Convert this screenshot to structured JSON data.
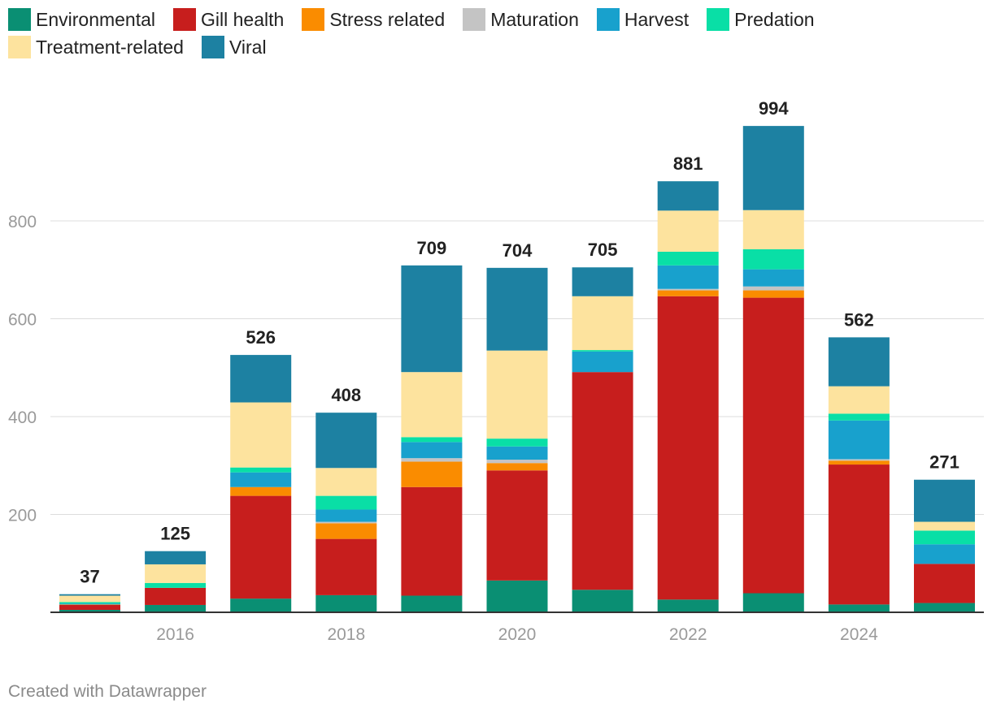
{
  "chart_data": {
    "type": "bar",
    "stacked": true,
    "title": "",
    "xlabel": "",
    "ylabel": "",
    "ylim": [
      0,
      1000
    ],
    "yticks": [
      200,
      400,
      600,
      800
    ],
    "categories": [
      "2015",
      "2016",
      "2017",
      "2018",
      "2019",
      "2020",
      "2021",
      "2022",
      "2023",
      "2024",
      "2025"
    ],
    "xtick_labels": [
      "",
      "2016",
      "",
      "2018",
      "",
      "2020",
      "",
      "2022",
      "",
      "2024",
      ""
    ],
    "totals": [
      37,
      125,
      526,
      408,
      709,
      704,
      705,
      881,
      994,
      562,
      271
    ],
    "total_labels": [
      "37",
      "125",
      "526",
      "408",
      "709",
      "704",
      "705",
      "881",
      "994",
      "562",
      "271"
    ],
    "series": [
      {
        "name": "Environmental",
        "color": "#0a8f73",
        "values": [
          5,
          15,
          28,
          35,
          34,
          65,
          46,
          26,
          39,
          16,
          19
        ]
      },
      {
        "name": "Gill health",
        "color": "#c71e1d",
        "values": [
          10,
          35,
          210,
          115,
          222,
          225,
          445,
          620,
          604,
          286,
          80
        ]
      },
      {
        "name": "Stress related",
        "color": "#fa8c00",
        "values": [
          1,
          0,
          18,
          32,
          52,
          15,
          0,
          12,
          15,
          8,
          0
        ]
      },
      {
        "name": "Maturation",
        "color": "#c4c4c4",
        "values": [
          0,
          0,
          0,
          3,
          7,
          7,
          0,
          3,
          8,
          3,
          0
        ]
      },
      {
        "name": "Harvest",
        "color": "#18a1cd",
        "values": [
          2,
          0,
          30,
          25,
          33,
          27,
          42,
          48,
          35,
          79,
          40
        ]
      },
      {
        "name": "Predation",
        "color": "#09dfa6",
        "values": [
          3,
          10,
          10,
          28,
          10,
          16,
          3,
          28,
          41,
          14,
          28
        ]
      },
      {
        "name": "Treatment-related",
        "color": "#fde39e",
        "values": [
          13,
          38,
          133,
          57,
          133,
          180,
          110,
          84,
          80,
          56,
          18
        ]
      },
      {
        "name": "Viral",
        "color": "#1d81a2",
        "values": [
          3,
          27,
          97,
          113,
          218,
          169,
          59,
          60,
          172,
          100,
          86
        ]
      }
    ]
  },
  "legend": {
    "items": [
      {
        "label": "Environmental",
        "color": "#0a8f73"
      },
      {
        "label": "Gill health",
        "color": "#c71e1d"
      },
      {
        "label": "Stress related",
        "color": "#fa8c00"
      },
      {
        "label": "Maturation",
        "color": "#c4c4c4"
      },
      {
        "label": "Harvest",
        "color": "#18a1cd"
      },
      {
        "label": "Predation",
        "color": "#09dfa6"
      },
      {
        "label": "Treatment-related",
        "color": "#fde39e"
      },
      {
        "label": "Viral",
        "color": "#1d81a2"
      }
    ]
  },
  "footer": {
    "credit": "Created with Datawrapper"
  }
}
